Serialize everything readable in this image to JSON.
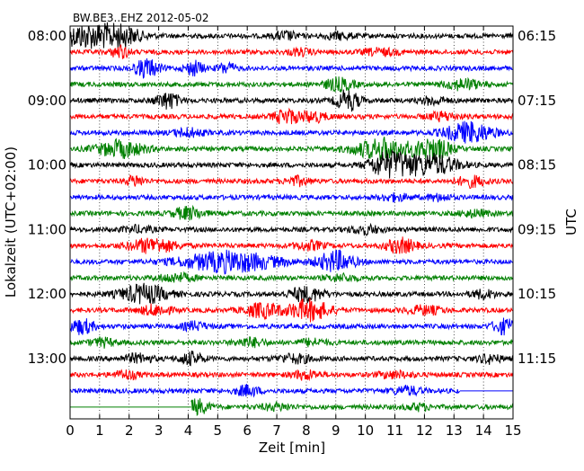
{
  "chart_data": {
    "type": "line",
    "title": "BW.BE3..EHZ 2012-05-02",
    "xlabel": "Zeit  [min]",
    "ylabel_left": "Lokalzeit (UTC+02:00)",
    "ylabel_right": "UTC",
    "xlim": [
      0,
      15
    ],
    "x_ticks": [
      "0",
      "1",
      "2",
      "3",
      "4",
      "5",
      "6",
      "7",
      "8",
      "9",
      "10",
      "11",
      "12",
      "13",
      "14",
      "15"
    ],
    "left_tick_labels": [
      "08:00",
      "09:00",
      "10:00",
      "11:00",
      "12:00",
      "13:00"
    ],
    "right_tick_labels": [
      "06:15",
      "07:15",
      "08:15",
      "09:15",
      "10:15",
      "11:15"
    ],
    "trace_colors": [
      "#000000",
      "#ff0000",
      "#0000ff",
      "#008000"
    ],
    "grid": "vertical dotted at each minute",
    "traces": [
      {
        "start": "08:00",
        "end_min": 15,
        "bursts": [
          [
            0.4,
            0.8,
            1
          ],
          [
            1.6,
            0.8,
            1
          ],
          [
            7.3,
            0.4,
            0.4
          ],
          [
            9.1,
            0.5,
            0.3
          ]
        ]
      },
      {
        "start": "08:15",
        "end_min": 15,
        "bursts": [
          [
            1.7,
            0.3,
            0.6
          ],
          [
            7.8,
            0.4,
            0.3
          ],
          [
            10.5,
            0.6,
            0.3
          ]
        ]
      },
      {
        "start": "08:30",
        "end_min": 15,
        "bursts": [
          [
            2.6,
            0.4,
            0.9
          ],
          [
            4.2,
            0.3,
            0.7
          ],
          [
            5.3,
            0.3,
            0.5
          ]
        ]
      },
      {
        "start": "08:45",
        "end_min": 15,
        "bursts": [
          [
            9.1,
            0.5,
            0.6
          ],
          [
            13.3,
            0.6,
            0.5
          ]
        ]
      },
      {
        "start": "09:00",
        "end_min": 15,
        "bursts": [
          [
            3.3,
            0.4,
            0.8
          ],
          [
            9.4,
            0.4,
            1
          ],
          [
            12.3,
            0.4,
            0.4
          ]
        ]
      },
      {
        "start": "09:15",
        "end_min": 15,
        "bursts": [
          [
            7.3,
            0.4,
            0.7
          ],
          [
            8.2,
            0.5,
            0.5
          ],
          [
            12.6,
            0.5,
            0.4
          ]
        ]
      },
      {
        "start": "09:30",
        "end_min": 15,
        "bursts": [
          [
            4.0,
            0.5,
            0.4
          ],
          [
            13.5,
            0.8,
            1
          ]
        ]
      },
      {
        "start": "09:45",
        "end_min": 15,
        "bursts": [
          [
            1.7,
            0.8,
            0.8
          ],
          [
            10.6,
            1.0,
            1
          ],
          [
            12.3,
            0.6,
            1
          ]
        ]
      },
      {
        "start": "10:00",
        "end_min": 15,
        "bursts": [
          [
            10.5,
            0.5,
            0.7
          ],
          [
            11.1,
            0.6,
            1
          ],
          [
            12.3,
            0.8,
            1
          ]
        ]
      },
      {
        "start": "10:15",
        "end_min": 15,
        "bursts": [
          [
            2.2,
            0.3,
            0.5
          ],
          [
            7.7,
            0.4,
            0.4
          ],
          [
            13.6,
            0.5,
            0.5
          ]
        ]
      },
      {
        "start": "10:30",
        "end_min": 15,
        "bursts": [
          [
            11.0,
            0.5,
            0.3
          ],
          [
            12.5,
            0.4,
            0.3
          ]
        ]
      },
      {
        "start": "10:45",
        "end_min": 15,
        "bursts": [
          [
            4.0,
            0.5,
            0.6
          ],
          [
            13.7,
            0.5,
            0.3
          ]
        ]
      },
      {
        "start": "11:00",
        "end_min": 15,
        "bursts": [
          [
            2.3,
            0.5,
            0.3
          ],
          [
            10.0,
            0.5,
            0.4
          ]
        ]
      },
      {
        "start": "11:15",
        "end_min": 15,
        "bursts": [
          [
            2.8,
            0.8,
            0.7
          ],
          [
            8.1,
            0.5,
            0.4
          ],
          [
            11.2,
            0.5,
            0.7
          ]
        ]
      },
      {
        "start": "11:30",
        "end_min": 15,
        "bursts": [
          [
            5.4,
            1.6,
            1
          ],
          [
            9.0,
            0.6,
            1
          ]
        ]
      },
      {
        "start": "11:45",
        "end_min": 15,
        "bursts": [
          [
            3.6,
            0.6,
            0.4
          ],
          [
            9.2,
            0.5,
            0.3
          ]
        ]
      },
      {
        "start": "12:00",
        "end_min": 15,
        "bursts": [
          [
            2.5,
            0.8,
            0.9
          ],
          [
            8.0,
            0.6,
            0.7
          ],
          [
            14.0,
            0.4,
            0.4
          ]
        ]
      },
      {
        "start": "12:15",
        "end_min": 15,
        "bursts": [
          [
            2.9,
            0.5,
            0.5
          ],
          [
            6.5,
            0.6,
            0.7
          ],
          [
            8.1,
            0.7,
            1
          ],
          [
            12.0,
            0.6,
            0.4
          ]
        ]
      },
      {
        "start": "12:30",
        "end_min": 15,
        "bursts": [
          [
            0.4,
            0.4,
            0.7
          ],
          [
            4.2,
            0.4,
            0.4
          ],
          [
            14.7,
            0.4,
            0.7
          ]
        ]
      },
      {
        "start": "12:45",
        "end_min": 15,
        "bursts": [
          [
            1.1,
            0.4,
            0.4
          ],
          [
            6.1,
            0.5,
            0.4
          ],
          [
            8.2,
            0.5,
            0.3
          ]
        ]
      },
      {
        "start": "13:00",
        "end_min": 15,
        "bursts": [
          [
            2.3,
            0.5,
            0.4
          ],
          [
            4.1,
            0.4,
            0.6
          ],
          [
            7.6,
            0.6,
            0.4
          ],
          [
            14.2,
            0.4,
            0.4
          ]
        ]
      },
      {
        "start": "13:15",
        "end_min": 15,
        "bursts": [
          [
            1.9,
            0.4,
            0.4
          ],
          [
            8.0,
            0.5,
            0.4
          ],
          [
            11.0,
            0.6,
            0.3
          ]
        ]
      },
      {
        "start": "13:30",
        "end_min": 13.2,
        "bursts": [
          [
            6.0,
            0.4,
            0.5
          ],
          [
            11.4,
            0.5,
            0.4
          ]
        ]
      },
      {
        "start": "13:45",
        "start_min": 4.1,
        "end_min": 15,
        "bursts": [
          [
            4.3,
            0.4,
            0.7
          ],
          [
            7.0,
            0.5,
            0.3
          ],
          [
            11.8,
            0.4,
            0.3
          ]
        ]
      }
    ]
  }
}
